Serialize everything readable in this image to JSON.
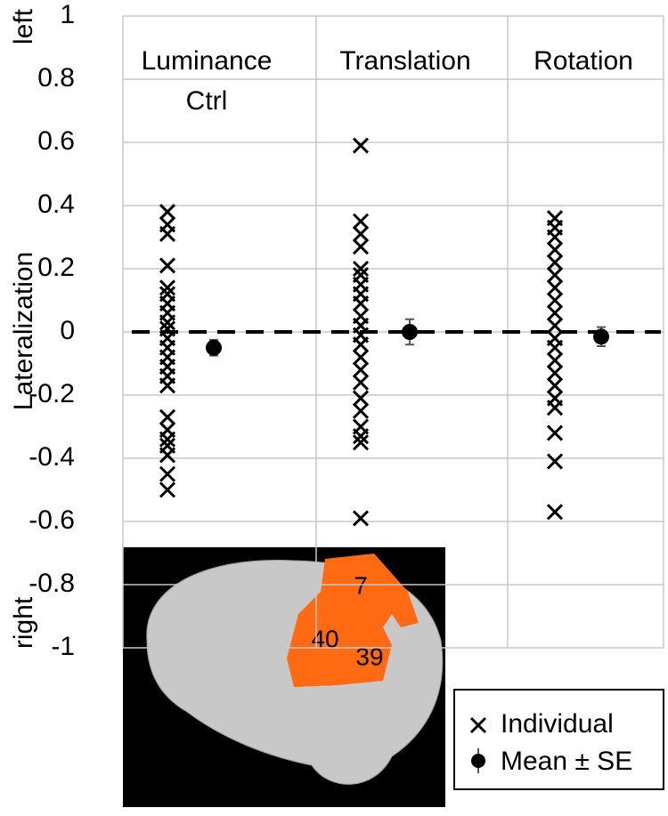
{
  "chart_data": {
    "type": "strip",
    "y_label": "Lateralization",
    "top_annotation": "left",
    "bottom_annotation": "right",
    "categories": [
      "Luminance Ctrl",
      "Translation",
      "Rotation"
    ],
    "series": [
      {
        "name": "Individual",
        "color": "#000000",
        "marker": "x",
        "values": [
          [
            0.38,
            0.34,
            0.31,
            0.21,
            0.14,
            0.12,
            0.09,
            0.06,
            0.03,
            0.01,
            -0.02,
            -0.05,
            -0.08,
            -0.11,
            -0.14,
            -0.17,
            -0.27,
            -0.31,
            -0.34,
            -0.36,
            -0.39,
            -0.45,
            -0.5
          ],
          [
            0.59,
            0.35,
            0.31,
            0.27,
            0.2,
            0.18,
            0.15,
            0.12,
            0.09,
            0.05,
            0.02,
            -0.01,
            -0.04,
            -0.08,
            -0.12,
            -0.16,
            -0.21,
            -0.25,
            -0.3,
            -0.33,
            -0.35,
            -0.59
          ],
          [
            0.36,
            0.33,
            0.3,
            0.26,
            0.22,
            0.18,
            0.14,
            0.1,
            0.06,
            0.02,
            -0.02,
            -0.05,
            -0.09,
            -0.13,
            -0.17,
            -0.21,
            -0.24,
            -0.32,
            -0.41,
            -0.57
          ]
        ]
      },
      {
        "name": "Mean ± SE",
        "color": "#000000",
        "marker": "circle",
        "values": [
          -0.05,
          0,
          -0.015
        ],
        "errors": [
          0.025,
          0.04,
          0.03
        ]
      }
    ],
    "ylim": [
      -1,
      1
    ],
    "yticks": [
      -1,
      -0.8,
      -0.6,
      -0.4,
      -0.2,
      0,
      0.2,
      0.4,
      0.6,
      0.8,
      1
    ],
    "reference_line": 0,
    "grid": true,
    "legend": "lower right"
  },
  "inset": {
    "labels": [
      "7",
      "40",
      "39"
    ]
  }
}
